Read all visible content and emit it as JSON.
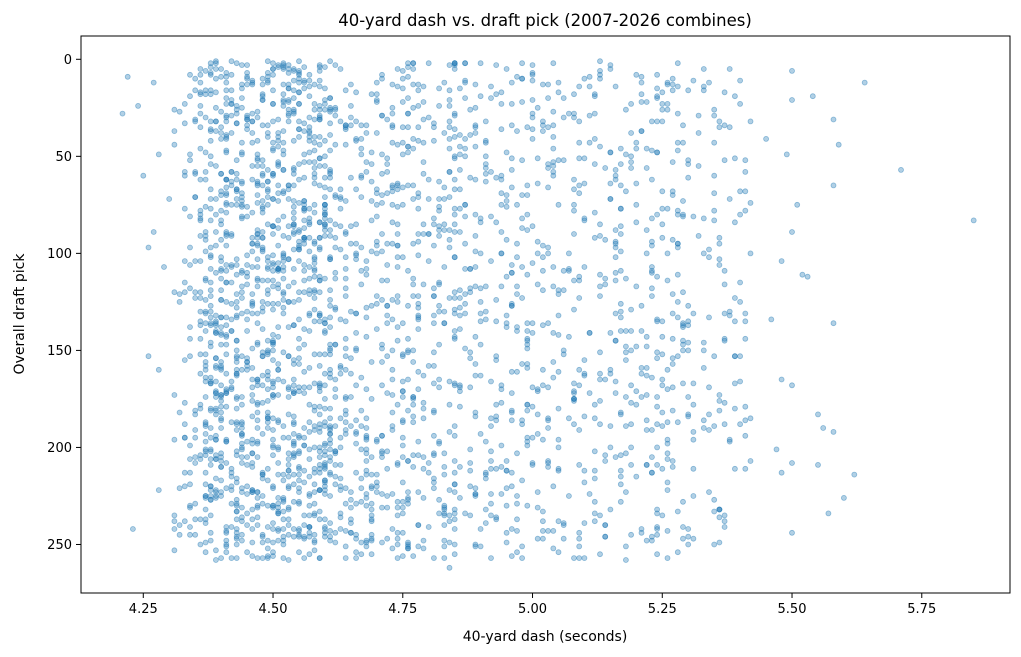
{
  "chart_data": {
    "type": "scatter",
    "title": "40-yard dash vs. draft pick (2007-2026 combines)",
    "xlabel": "40-yard dash (seconds)",
    "ylabel": "Overall draft pick",
    "xlim": [
      4.13,
      5.92
    ],
    "ylim": [
      275,
      -12
    ],
    "y_inverted": true,
    "x_ticks": [
      4.25,
      4.5,
      4.75,
      5.0,
      5.25,
      5.5,
      5.75
    ],
    "x_tick_labels": [
      "4.25",
      "4.50",
      "4.75",
      "5.00",
      "5.25",
      "5.50",
      "5.75"
    ],
    "y_ticks": [
      0,
      50,
      100,
      150,
      200,
      250
    ],
    "y_tick_labels": [
      "0",
      "50",
      "100",
      "150",
      "200",
      "250"
    ],
    "grid": false,
    "legend": "none",
    "marker_color": "#1f77b4",
    "marker_alpha": 0.35,
    "series": [
      {
        "points": [
          [
            4.21,
            28
          ],
          [
            4.22,
            9
          ],
          [
            4.23,
            242
          ],
          [
            4.24,
            24
          ],
          [
            4.25,
            60
          ],
          [
            4.26,
            97
          ],
          [
            4.26,
            153
          ],
          [
            4.27,
            89
          ],
          [
            4.27,
            12
          ],
          [
            4.28,
            49
          ],
          [
            4.28,
            222
          ],
          [
            4.28,
            160
          ],
          [
            4.29,
            107
          ],
          [
            4.3,
            72
          ],
          [
            4.31,
            253
          ],
          [
            4.31,
            242
          ],
          [
            4.33,
            188
          ],
          [
            4.34,
            118
          ],
          [
            4.35,
            205
          ],
          [
            4.36,
            250
          ],
          [
            4.41,
            243
          ],
          [
            4.42,
            241
          ],
          [
            4.64,
            257
          ],
          [
            4.84,
            262
          ],
          [
            4.85,
            3
          ],
          [
            4.95,
            112
          ],
          [
            5.45,
            41
          ],
          [
            5.46,
            134
          ],
          [
            5.47,
            201
          ],
          [
            5.48,
            104
          ],
          [
            5.48,
            213
          ],
          [
            5.48,
            165
          ],
          [
            5.49,
            49
          ],
          [
            5.5,
            6
          ],
          [
            5.5,
            21
          ],
          [
            5.5,
            89
          ],
          [
            5.5,
            168
          ],
          [
            5.5,
            208
          ],
          [
            5.5,
            244
          ],
          [
            5.51,
            75
          ],
          [
            5.52,
            111
          ],
          [
            5.53,
            112
          ],
          [
            5.54,
            19
          ],
          [
            5.55,
            183
          ],
          [
            5.55,
            209
          ],
          [
            5.56,
            190
          ],
          [
            5.57,
            234
          ],
          [
            5.58,
            31
          ],
          [
            5.58,
            65
          ],
          [
            5.58,
            136
          ],
          [
            5.58,
            192
          ],
          [
            5.59,
            44
          ],
          [
            5.6,
            226
          ],
          [
            5.62,
            214
          ],
          [
            5.64,
            12
          ],
          [
            5.71,
            57
          ],
          [
            5.85,
            83
          ]
        ],
        "density_bands": [
          {
            "x_range": [
              4.31,
              4.36
            ],
            "y_range": [
              2,
              252
            ],
            "points": 75
          },
          {
            "x_range": [
              4.36,
              4.62
            ],
            "y_range": [
              1,
              258
            ],
            "points": 1225
          },
          {
            "x_range": [
              4.62,
              4.86
            ],
            "y_range": [
              1,
              258
            ],
            "points": 560
          },
          {
            "x_range": [
              4.86,
              5.3
            ],
            "y_range": [
              1,
              258
            ],
            "points": 700
          },
          {
            "x_range": [
              5.3,
              5.42
            ],
            "y_range": [
              4,
              250
            ],
            "points": 120
          }
        ]
      }
    ]
  }
}
